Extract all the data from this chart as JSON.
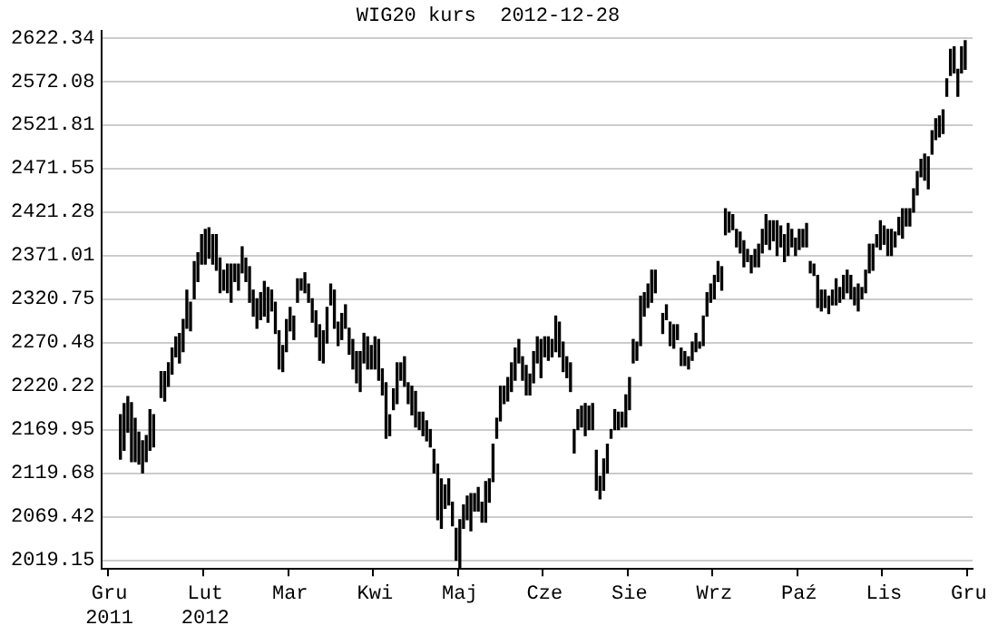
{
  "chart_data": {
    "type": "bar",
    "title": "WIG20 kurs  2012-12-28",
    "color": "#000000",
    "grid": "y",
    "categories": [
      null,
      null,
      "Gru\n2011",
      null,
      null,
      null,
      null,
      null,
      null,
      null,
      null,
      null,
      null,
      null,
      null,
      null,
      null,
      null,
      null,
      null,
      null,
      null,
      null,
      null,
      null,
      null,
      null,
      null,
      "Lut\n2012",
      null,
      null,
      null,
      null,
      null,
      null,
      null,
      null,
      null,
      null,
      null,
      null,
      null,
      null,
      null,
      null,
      null,
      null,
      null,
      null,
      null,
      null,
      "Mar",
      null,
      null,
      null,
      null,
      null,
      null,
      null,
      null,
      null,
      null,
      null,
      null,
      null,
      null,
      null,
      null,
      null,
      null,
      null,
      null,
      null,
      null,
      "Kwi",
      null,
      null,
      null,
      null,
      null,
      null,
      null,
      null,
      null,
      null,
      null,
      null,
      null,
      null,
      null,
      null,
      null,
      null,
      null,
      null,
      null,
      null,
      "Maj",
      null,
      null,
      null,
      null,
      null,
      null,
      null,
      null,
      null,
      null,
      null,
      null,
      null,
      null,
      null,
      null,
      null,
      null,
      null,
      null,
      null,
      null,
      "Cze",
      null,
      null,
      null,
      null,
      null,
      null,
      null,
      null,
      null,
      null,
      null,
      null,
      null,
      null,
      null,
      null,
      null,
      null,
      null,
      null,
      null,
      null,
      "Sie",
      null,
      null,
      null,
      null,
      null,
      null,
      null,
      null,
      null,
      null,
      null,
      null,
      null,
      null,
      null,
      null,
      null,
      null,
      null,
      null,
      null,
      null,
      "Wrz",
      null,
      null,
      null,
      null,
      null,
      null,
      null,
      null,
      null,
      null,
      null,
      null,
      null,
      null,
      null,
      null,
      null,
      null,
      null,
      null,
      null,
      null,
      "Paź",
      null,
      null,
      null,
      null,
      null,
      null,
      null,
      null,
      null,
      null,
      null,
      null,
      null,
      null,
      null,
      null,
      null,
      null,
      null,
      null,
      null,
      null,
      "Lis",
      null,
      null,
      null,
      null,
      null,
      null,
      null,
      null,
      null,
      null,
      null,
      null,
      null,
      null,
      null,
      null,
      null,
      null,
      null,
      null,
      null,
      null,
      "Gru",
      null
    ],
    "base": [
      null,
      null,
      null,
      null,
      null,
      2136,
      2146,
      2167,
      2133,
      2133,
      2130,
      2120,
      2133,
      2146,
      2150,
      null,
      2207,
      2203,
      2220,
      2234,
      2254,
      2247,
      2260,
      2287,
      2284,
      2321,
      2341,
      2361,
      2361,
      2368,
      2361,
      2354,
      2328,
      2331,
      2328,
      2317,
      2341,
      2331,
      2351,
      2341,
      2317,
      2301,
      2287,
      2297,
      2301,
      2294,
      2307,
      2281,
      2240,
      2237,
      2260,
      2284,
      2274,
      2317,
      2331,
      2328,
      2317,
      2294,
      2277,
      2250,
      2247,
      2270,
      2314,
      2287,
      2267,
      2274,
      2287,
      2257,
      2240,
      2224,
      2214,
      2247,
      2240,
      2240,
      2240,
      2227,
      2210,
      2160,
      2163,
      2193,
      2200,
      2227,
      2220,
      2200,
      2187,
      2173,
      2170,
      2163,
      2157,
      2150,
      2120,
      2066,
      2056,
      2079,
      2083,
      2059,
      2019,
      2010,
      2056,
      2066,
      2053,
      2076,
      2076,
      2063,
      2063,
      2086,
      2110,
      2160,
      2180,
      2200,
      2203,
      2214,
      2227,
      2247,
      2227,
      2210,
      2210,
      2224,
      2247,
      2230,
      2254,
      2250,
      2254,
      2260,
      2254,
      2237,
      2230,
      2214,
      2143,
      2170,
      2173,
      2163,
      2170,
      2170,
      2100,
      2090,
      2100,
      2120,
      2160,
      2170,
      2170,
      2173,
      2173,
      2193,
      2247,
      2250,
      2267,
      2301,
      2311,
      2317,
      2328,
      null,
      2281,
      2297,
      2267,
      2264,
      2274,
      2244,
      2244,
      2240,
      2250,
      2260,
      2264,
      2267,
      2301,
      2317,
      2321,
      2341,
      2331,
      2395,
      2398,
      2401,
      2381,
      2374,
      2358,
      2364,
      2351,
      2358,
      2358,
      2374,
      2384,
      2378,
      2388,
      2371,
      2381,
      2364,
      2371,
      2381,
      2371,
      2378,
      2381,
      2381,
      2351,
      2348,
      2311,
      2307,
      2311,
      2304,
      2314,
      2314,
      2317,
      2321,
      2328,
      2321,
      2314,
      2307,
      2321,
      2328,
      2351,
      2354,
      2381,
      2378,
      2384,
      2371,
      2371,
      2381,
      2395,
      2391,
      2405,
      2405,
      2421,
      2441,
      2462,
      2458,
      2448,
      2488,
      2505,
      2508,
      2512,
      2555,
      2579,
      2582,
      2555,
      2582,
      2586,
      null,
      null
    ],
    "values": [
      null,
      null,
      null,
      null,
      null,
      51,
      54,
      41,
      68,
      50,
      37,
      37,
      30,
      47,
      37,
      null,
      30,
      34,
      27,
      30,
      23,
      34,
      37,
      44,
      33,
      43,
      33,
      34,
      40,
      35,
      34,
      41,
      40,
      23,
      33,
      44,
      20,
      30,
      30,
      27,
      41,
      30,
      34,
      31,
      40,
      40,
      24,
      36,
      44,
      30,
      37,
      27,
      27,
      27,
      13,
      23,
      21,
      27,
      30,
      41,
      37,
      41,
      24,
      44,
      27,
      30,
      27,
      30,
      34,
      36,
      46,
      34,
      37,
      27,
      37,
      47,
      30,
      64,
      24,
      24,
      47,
      20,
      34,
      24,
      33,
      41,
      20,
      27,
      23,
      20,
      27,
      64,
      57,
      27,
      30,
      27,
      37,
      56,
      27,
      27,
      43,
      20,
      27,
      23,
      47,
      27,
      43,
      23,
      40,
      20,
      27,
      33,
      37,
      27,
      27,
      34,
      24,
      36,
      30,
      44,
      23,
      27,
      20,
      41,
      40,
      34,
      24,
      33,
      27,
      23,
      24,
      37,
      27,
      30,
      46,
      26,
      36,
      33,
      10,
      23,
      20,
      17,
      37,
      37,
      27,
      21,
      57,
      27,
      27,
      37,
      26,
      null,
      23,
      17,
      27,
      27,
      17,
      20,
      16,
      14,
      21,
      21,
      7,
      34,
      27,
      21,
      27,
      23,
      27,
      30,
      23,
      17,
      20,
      24,
      30,
      14,
      20,
      20,
      26,
      27,
      34,
      33,
      23,
      40,
      24,
      31,
      37,
      20,
      20,
      23,
      20,
      27,
      13,
      13,
      37,
      24,
      20,
      20,
      17,
      30,
      17,
      27,
      26,
      27,
      20,
      31,
      13,
      26,
      33,
      30,
      14,
      33,
      21,
      30,
      30,
      17,
      20,
      34,
      20,
      20,
      27,
      27,
      20,
      30,
      37,
      27,
      24,
      24,
      27,
      20,
      30,
      30,
      31,
      30,
      33,
      null,
      null
    ],
    "ylim": [
      2009,
      2630
    ],
    "yticks": [
      2019.15,
      2069.42,
      2119.68,
      2169.95,
      2220.22,
      2270.48,
      2320.75,
      2371.01,
      2421.28,
      2471.55,
      2521.81,
      2572.08,
      2622.34
    ]
  }
}
